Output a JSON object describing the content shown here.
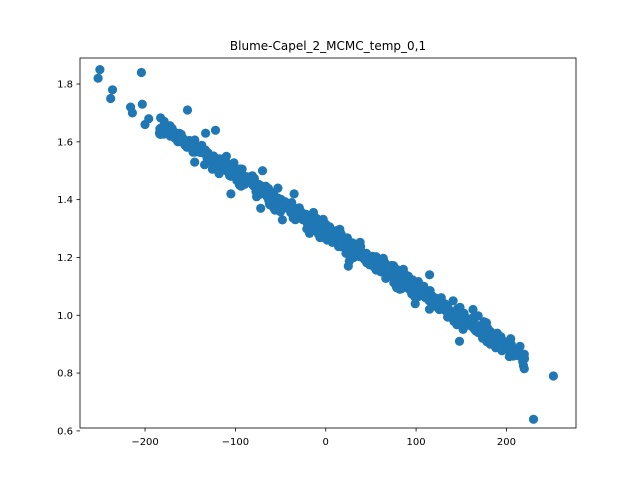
{
  "chart_data": {
    "type": "scatter",
    "title": "Blume-Capel_2_MCMC_temp_0,1",
    "xlabel": "",
    "ylabel": "",
    "xlim": [
      -272,
      277
    ],
    "ylim": [
      0.61,
      1.89
    ],
    "xticks": [
      -200,
      -100,
      0,
      100,
      200
    ],
    "yticks": [
      0.6,
      0.8,
      1.0,
      1.2,
      1.4,
      1.6,
      1.8
    ],
    "ytick_labels": [
      "0.6",
      "0.8",
      "1.0",
      "1.2",
      "1.4",
      "1.6",
      "1.8"
    ],
    "grid": false,
    "marker_color": "#1f77b4",
    "trend": {
      "slope": -0.00199,
      "intercept": 1.29,
      "spread": 0.028,
      "x_range": [
        -185,
        220
      ],
      "count": 620
    },
    "outliers": [
      {
        "x": -250,
        "y": 1.85
      },
      {
        "x": -252,
        "y": 1.82
      },
      {
        "x": -204,
        "y": 1.84
      },
      {
        "x": -236,
        "y": 1.78
      },
      {
        "x": -238,
        "y": 1.75
      },
      {
        "x": -203,
        "y": 1.73
      },
      {
        "x": -216,
        "y": 1.72
      },
      {
        "x": -214,
        "y": 1.7
      },
      {
        "x": -200,
        "y": 1.66
      },
      {
        "x": -196,
        "y": 1.68
      },
      {
        "x": -153,
        "y": 1.71
      },
      {
        "x": -122,
        "y": 1.64
      },
      {
        "x": -133,
        "y": 1.63
      },
      {
        "x": -110,
        "y": 1.55
      },
      {
        "x": -118,
        "y": 1.49
      },
      {
        "x": -145,
        "y": 1.53
      },
      {
        "x": -105,
        "y": 1.42
      },
      {
        "x": -70,
        "y": 1.5
      },
      {
        "x": -72,
        "y": 1.37
      },
      {
        "x": -35,
        "y": 1.42
      },
      {
        "x": -53,
        "y": 1.44
      },
      {
        "x": -48,
        "y": 1.33
      },
      {
        "x": -8,
        "y": 1.28
      },
      {
        "x": 25,
        "y": 1.17
      },
      {
        "x": 31,
        "y": 1.2
      },
      {
        "x": 61,
        "y": 1.15
      },
      {
        "x": 106,
        "y": 1.1
      },
      {
        "x": 115,
        "y": 1.14
      },
      {
        "x": 141,
        "y": 1.05
      },
      {
        "x": 163,
        "y": 1.02
      },
      {
        "x": 162,
        "y": 0.99
      },
      {
        "x": 177,
        "y": 0.95
      },
      {
        "x": 202,
        "y": 0.89
      },
      {
        "x": 208,
        "y": 0.87
      },
      {
        "x": 213,
        "y": 0.86
      },
      {
        "x": 218,
        "y": 0.84
      },
      {
        "x": 220,
        "y": 0.85
      },
      {
        "x": 252,
        "y": 0.79
      },
      {
        "x": 230,
        "y": 0.64
      },
      {
        "x": 82,
        "y": 1.09
      },
      {
        "x": 99,
        "y": 1.04
      },
      {
        "x": 135,
        "y": 1.03
      },
      {
        "x": 148,
        "y": 0.91
      },
      {
        "x": -170,
        "y": 1.63
      },
      {
        "x": -160,
        "y": 1.6
      }
    ]
  }
}
